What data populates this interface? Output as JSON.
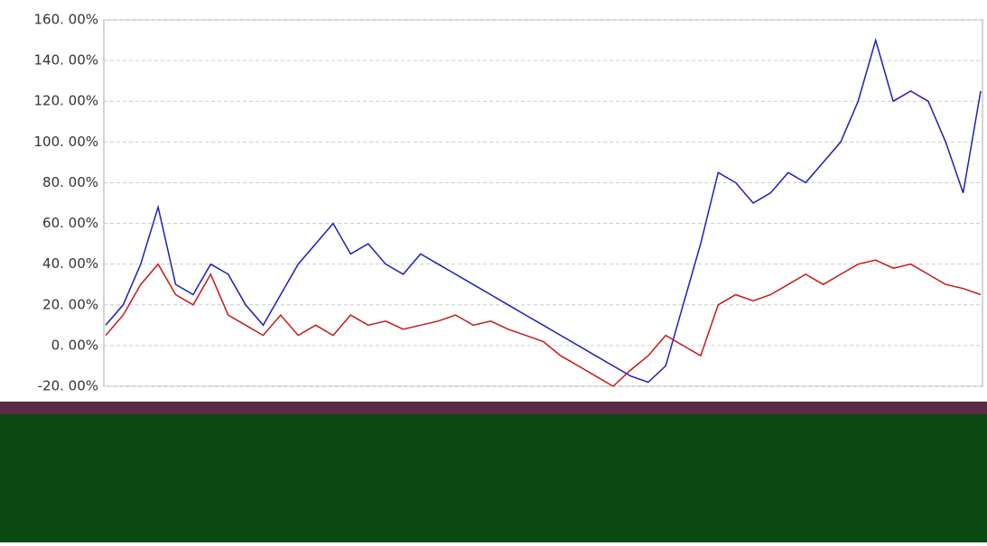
{
  "chart_data": {
    "type": "line",
    "ylim": [
      -20,
      160
    ],
    "yticks": [
      {
        "value": -20,
        "label": "-20. 00%"
      },
      {
        "value": 0,
        "label": "0. 00%"
      },
      {
        "value": 20,
        "label": "20. 00%"
      },
      {
        "value": 40,
        "label": "40. 00%"
      },
      {
        "value": 60,
        "label": "60. 00%"
      },
      {
        "value": 80,
        "label": "80. 00%"
      },
      {
        "value": 100,
        "label": "100. 00%"
      },
      {
        "value": 120,
        "label": "120. 00%"
      },
      {
        "value": 140,
        "label": "140. 00%"
      },
      {
        "value": 160,
        "label": "160. 00%"
      }
    ],
    "grid": true,
    "series": [
      {
        "color": "#1f1fb8",
        "values": [
          10,
          20,
          40,
          68,
          30,
          25,
          40,
          35,
          20,
          10,
          25,
          40,
          50,
          60,
          45,
          50,
          40,
          35,
          45,
          40,
          35,
          30,
          25,
          20,
          15,
          10,
          5,
          0,
          -5,
          -10,
          -15,
          -18,
          -10,
          20,
          50,
          85,
          80,
          70,
          75,
          85,
          80,
          90,
          100,
          120,
          150,
          120,
          125,
          120,
          100,
          75,
          125
        ]
      },
      {
        "color": "#c41a1a",
        "values": [
          5,
          15,
          30,
          40,
          25,
          20,
          35,
          15,
          10,
          5,
          15,
          5,
          10,
          5,
          15,
          10,
          12,
          8,
          10,
          12,
          15,
          10,
          12,
          8,
          5,
          2,
          -5,
          -10,
          -15,
          -20,
          -12,
          -5,
          5,
          0,
          -5,
          20,
          25,
          22,
          25,
          30,
          35,
          30,
          35,
          40,
          42,
          38,
          40,
          35,
          30,
          28,
          25
        ]
      }
    ]
  }
}
